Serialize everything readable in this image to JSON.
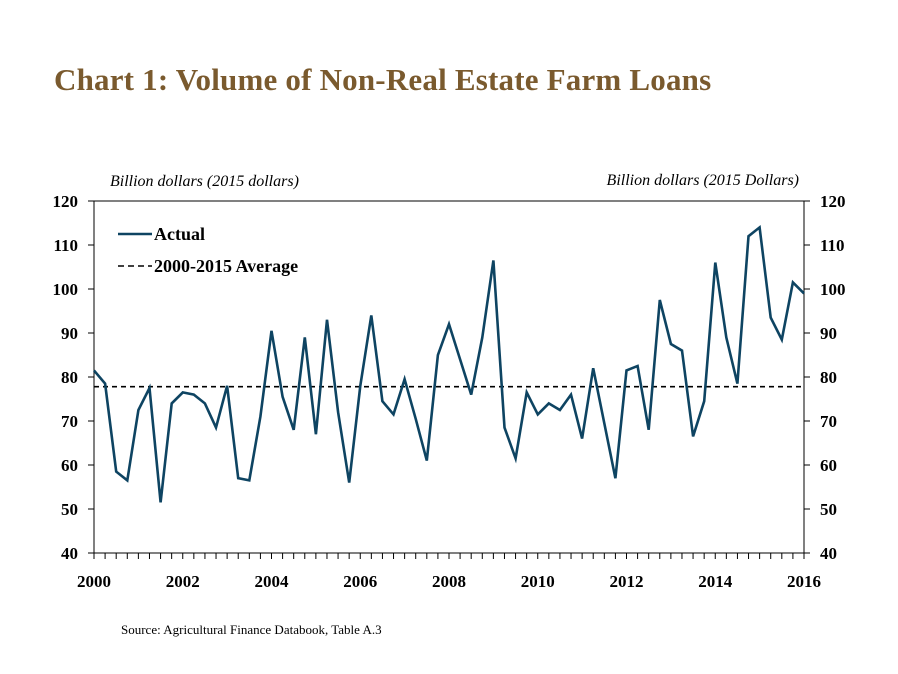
{
  "page": {
    "title": "Chart 1: Volume of Non-Real Estate Farm Loans",
    "source": "Source: Agricultural Finance Databook, Table A.3"
  },
  "chart_data": {
    "type": "line",
    "title": "Chart 1: Volume of Non-Real Estate Farm Loans",
    "ylabel_left": "Billion dollars (2015 dollars)",
    "ylabel_right": "Billion dollars (2015 Dollars)",
    "xlim": [
      2000,
      2016
    ],
    "ylim": [
      40,
      120
    ],
    "x_ticks": [
      "2000",
      "2002",
      "2004",
      "2006",
      "2008",
      "2010",
      "2012",
      "2014",
      "2016"
    ],
    "y_ticks": [
      40,
      50,
      60,
      70,
      80,
      90,
      100,
      110,
      120
    ],
    "legend": {
      "placement": "top-left"
    },
    "grid": false,
    "colors": {
      "actual": "#0e4462",
      "average": "#000000",
      "title": "#7a5a2e"
    },
    "series": [
      {
        "name": "Actual",
        "style": "solid",
        "x": [
          2000.0,
          2000.25,
          2000.5,
          2000.75,
          2001.0,
          2001.25,
          2001.5,
          2001.75,
          2002.0,
          2002.25,
          2002.5,
          2002.75,
          2003.0,
          2003.25,
          2003.5,
          2003.75,
          2004.0,
          2004.25,
          2004.5,
          2004.75,
          2005.0,
          2005.25,
          2005.5,
          2005.75,
          2006.0,
          2006.25,
          2006.5,
          2006.75,
          2007.0,
          2007.25,
          2007.5,
          2007.75,
          2008.0,
          2008.25,
          2008.5,
          2008.75,
          2009.0,
          2009.25,
          2009.5,
          2009.75,
          2010.0,
          2010.25,
          2010.5,
          2010.75,
          2011.0,
          2011.25,
          2011.5,
          2011.75,
          2012.0,
          2012.25,
          2012.5,
          2012.75,
          2013.0,
          2013.25,
          2013.5,
          2013.75,
          2014.0,
          2014.25,
          2014.5,
          2014.75,
          2015.0,
          2015.25,
          2015.5,
          2015.75,
          2016.0
        ],
        "values": [
          81.5,
          78.5,
          58.5,
          56.5,
          72.5,
          77.5,
          51.5,
          74.0,
          76.5,
          76.0,
          74.0,
          68.5,
          78.0,
          57.0,
          56.5,
          71.0,
          90.5,
          75.5,
          68.0,
          89.0,
          67.0,
          93.0,
          72.0,
          56.0,
          78.0,
          94.0,
          74.5,
          71.5,
          79.5,
          70.5,
          61.0,
          85.0,
          92.0,
          84.0,
          76.0,
          89.0,
          106.5,
          68.5,
          61.5,
          76.5,
          71.5,
          74.0,
          72.5,
          76.0,
          66.0,
          82.0,
          69.5,
          57.0,
          81.5,
          82.5,
          68.0,
          97.5,
          87.5,
          86.0,
          66.5,
          74.5,
          106.0,
          89.0,
          78.5,
          112.0,
          114.0,
          93.5,
          88.5,
          101.5,
          99.0
        ]
      },
      {
        "name": "2000-2015 Average",
        "style": "dashed",
        "value": 77.8
      }
    ]
  }
}
